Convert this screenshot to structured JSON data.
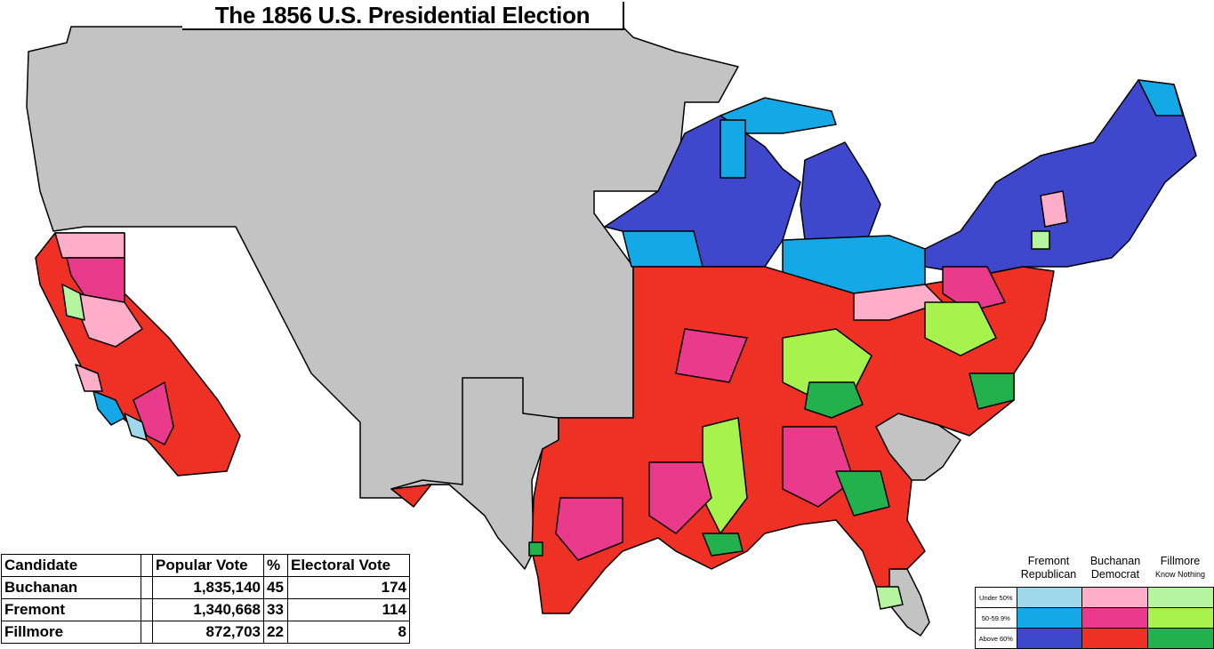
{
  "title": "The 1856 U.S. Presidential Election",
  "colors": {
    "no_data": "#c3c3c3",
    "fremont_under50": "#9fd8ea",
    "fremont_50_60": "#14a9e6",
    "fremont_above60": "#3f48cc",
    "buchanan_under50": "#ffaec9",
    "buchanan_50_60": "#ea3a8c",
    "buchanan_above60": "#ee3124",
    "fillmore_under50": "#b5f5a0",
    "fillmore_50_60": "#a8f24e",
    "fillmore_above60": "#22b14c"
  },
  "results": {
    "headers": [
      "Candidate",
      "",
      "Popular Vote",
      "%",
      "Electoral Vote"
    ],
    "rows": [
      {
        "candidate": "Buchanan",
        "popular_vote": "1,835,140",
        "percent": "45",
        "electoral_vote": "174"
      },
      {
        "candidate": "Fremont",
        "popular_vote": "1,340,668",
        "percent": "33",
        "electoral_vote": "114"
      },
      {
        "candidate": "Fillmore",
        "popular_vote": "872,703",
        "percent": "22",
        "electoral_vote": "8"
      }
    ]
  },
  "legend": {
    "candidates": [
      {
        "name": "Fremont",
        "party": "Republican"
      },
      {
        "name": "Buchanan",
        "party": "Democrat"
      },
      {
        "name": "Fillmore",
        "party": "Know Nothing"
      }
    ],
    "bands": [
      "Under 50%",
      "50-59.9%",
      "Above 60%"
    ]
  }
}
